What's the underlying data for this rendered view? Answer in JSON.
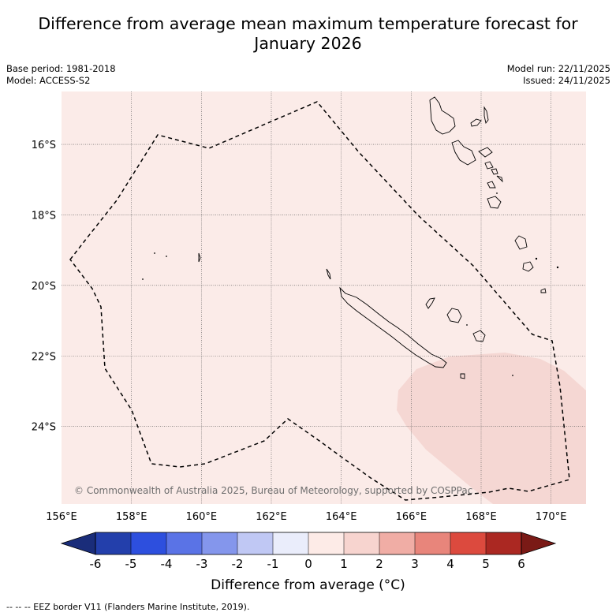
{
  "title_line1": "Difference from average mean maximum temperature forecast for",
  "title_line2": "January 2026",
  "meta": {
    "base_period": "Base period: 1981-2018",
    "model": "Model: ACCESS-S2",
    "model_run": "Model run: 22/11/2025",
    "issued": "Issued: 24/11/2025"
  },
  "map": {
    "lon_range": [
      156,
      171
    ],
    "lat_range": [
      -26.2,
      -14.5
    ],
    "lon_ticks": [
      156,
      158,
      160,
      162,
      164,
      166,
      168,
      170
    ],
    "lon_labels": [
      "156°E",
      "158°E",
      "160°E",
      "162°E",
      "164°E",
      "166°E",
      "168°E",
      "170°E"
    ],
    "lat_ticks": [
      -16,
      -18,
      -20,
      -22,
      -24
    ],
    "lat_labels": [
      "16°S",
      "18°S",
      "20°S",
      "22°S",
      "24°S"
    ],
    "base_fill": "#fbebe8",
    "anomaly_fill": "#f5d7d3",
    "attribution": "© Commonwealth of Australia 2025, Bureau of Meteorology, supported by COSPPac"
  },
  "colorbar": {
    "ticks": [
      "-6",
      "-5",
      "-4",
      "-3",
      "-2",
      "-1",
      "0",
      "1",
      "2",
      "3",
      "4",
      "5",
      "6"
    ],
    "colors": [
      "#233fab",
      "#2d4fde",
      "#5a73e6",
      "#8496ec",
      "#c0c8f4",
      "#eaedfb",
      "#fdebe7",
      "#f7d4cf",
      "#f0ada5",
      "#e8857b",
      "#dc4a3e",
      "#ab2822"
    ],
    "low_color": "#1a2d7a",
    "high_color": "#7a1a16",
    "label": "Difference from average (°C)"
  },
  "footnote": "--  --  -- EEZ border V11 (Flanders Marine Institute, 2019)."
}
